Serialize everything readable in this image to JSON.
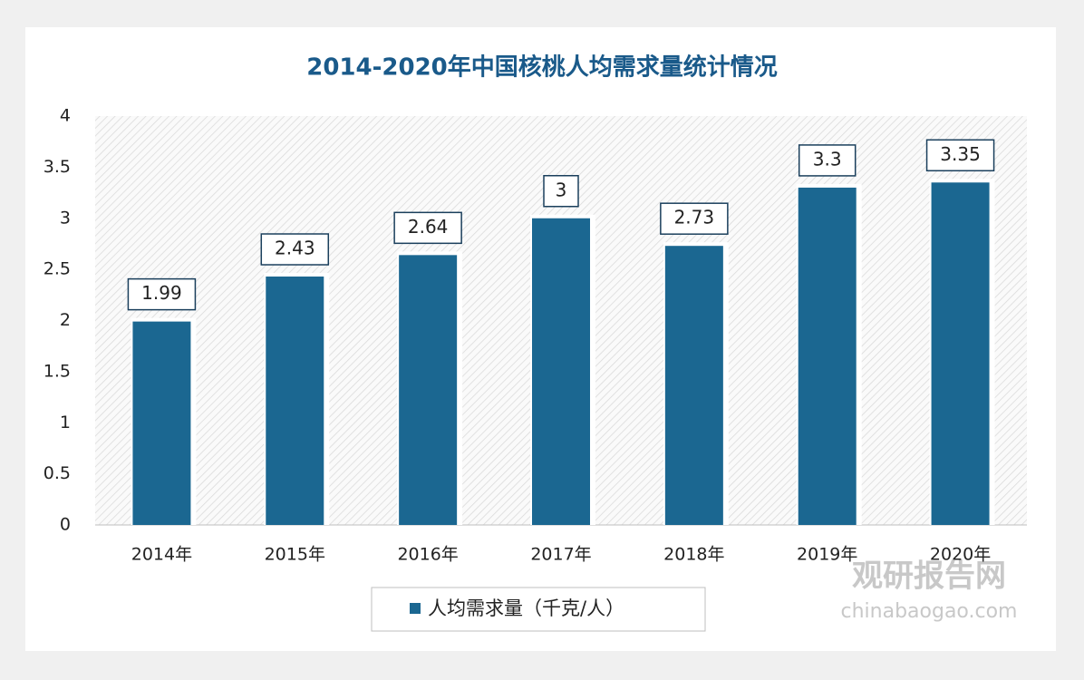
{
  "chart_data": {
    "type": "bar",
    "title": "2014-2020年中国核桃人均需求量统计情况",
    "categories": [
      "2014年",
      "2015年",
      "2016年",
      "2017年",
      "2018年",
      "2019年",
      "2020年"
    ],
    "series": [
      {
        "name": "人均需求量（千克/人）",
        "color": "#1b6791",
        "values": [
          1.99,
          2.43,
          2.64,
          3,
          2.73,
          3.3,
          3.35
        ]
      }
    ],
    "ylim": [
      0,
      4
    ],
    "yticks": [
      0,
      0.5,
      1,
      1.5,
      2,
      2.5,
      3,
      3.5,
      4
    ],
    "grid": false,
    "legend": "bottom"
  },
  "watermark": {
    "name": "观研报告网",
    "url": "chinabaogao.com"
  }
}
